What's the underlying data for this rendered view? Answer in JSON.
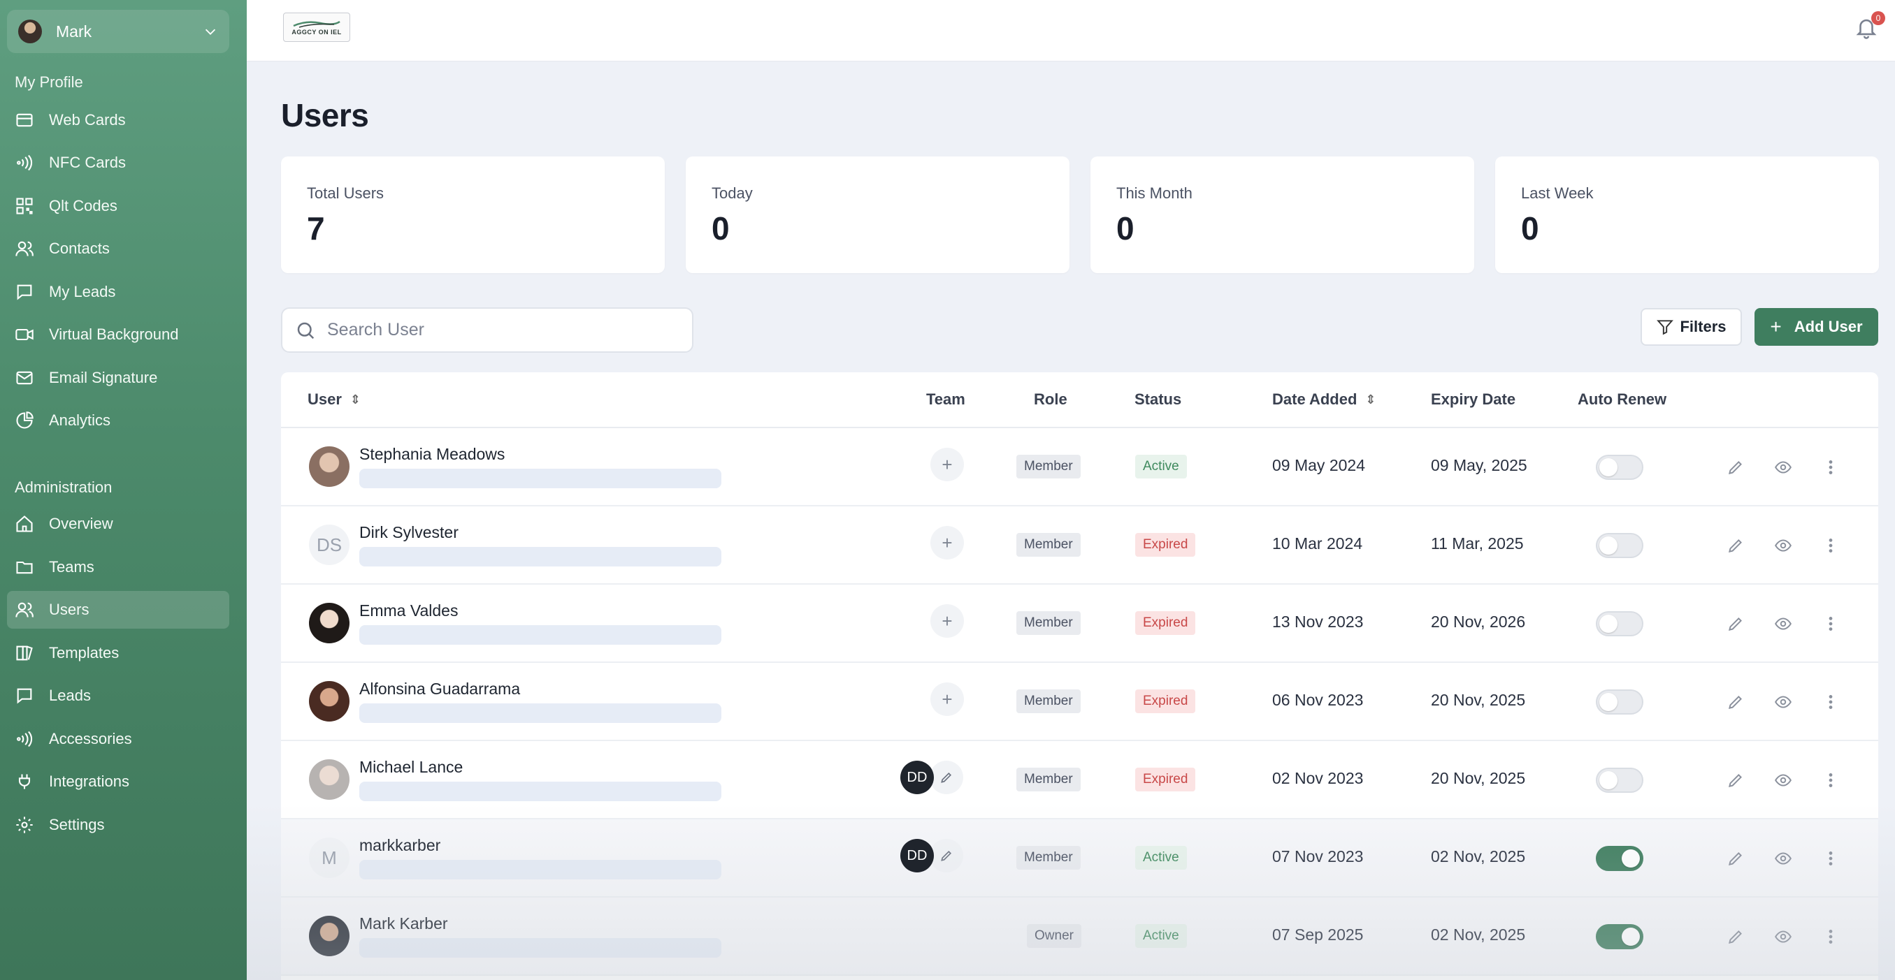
{
  "sidebar": {
    "profile_name": "Mark",
    "my_profile_label": "My Profile",
    "my_profile_items": [
      {
        "label": "Web Cards",
        "icon": "card-icon"
      },
      {
        "label": "NFC Cards",
        "icon": "nfc-icon"
      },
      {
        "label": "Qlt Codes",
        "icon": "qr-code-icon"
      },
      {
        "label": "Contacts",
        "icon": "contacts-icon"
      },
      {
        "label": "My Leads",
        "icon": "chat-icon"
      },
      {
        "label": "Virtual Background",
        "icon": "video-icon"
      },
      {
        "label": "Email Signature",
        "icon": "mail-icon"
      },
      {
        "label": "Analytics",
        "icon": "pie-chart-icon"
      }
    ],
    "admin_label": "Administration",
    "admin_items": [
      {
        "label": "Overview",
        "icon": "home-icon"
      },
      {
        "label": "Teams",
        "icon": "folder-icon"
      },
      {
        "label": "Users",
        "icon": "users-icon",
        "active": true
      },
      {
        "label": "Templates",
        "icon": "templates-icon"
      },
      {
        "label": "Leads",
        "icon": "chat-icon"
      },
      {
        "label": "Accessories",
        "icon": "nfc-icon"
      },
      {
        "label": "Integrations",
        "icon": "plug-icon"
      },
      {
        "label": "Settings",
        "icon": "gear-icon"
      }
    ]
  },
  "header": {
    "logo_text": "AGGCY ON IEL",
    "notification_count": "0"
  },
  "main": {
    "title": "Users",
    "stats": [
      {
        "label": "Total Users",
        "value": "7"
      },
      {
        "label": "Today",
        "value": "0"
      },
      {
        "label": "This Month",
        "value": "0"
      },
      {
        "label": "Last Week",
        "value": "0"
      }
    ],
    "search_placeholder": "Search User",
    "filters_label": "Filters",
    "add_user_label": "Add User"
  },
  "table": {
    "columns": {
      "user": "User",
      "team": "Team",
      "role": "Role",
      "status": "Status",
      "date_added": "Date Added",
      "expiry_date": "Expiry Date",
      "auto_renew": "Auto Renew"
    },
    "rows": [
      {
        "name": "Stephania Meadows",
        "initials": "",
        "team": "",
        "role": "Member",
        "status": "Active",
        "date_added": "09 May 2024",
        "expiry": "09 May, 2025",
        "auto_renew": false
      },
      {
        "name": "Dirk Sylvester",
        "initials": "DS",
        "team": "",
        "role": "Member",
        "status": "Expired",
        "date_added": "10 Mar 2024",
        "expiry": "11 Mar, 2025",
        "auto_renew": false
      },
      {
        "name": "Emma Valdes",
        "initials": "",
        "team": "",
        "role": "Member",
        "status": "Expired",
        "date_added": "13 Nov 2023",
        "expiry": "20 Nov, 2026",
        "auto_renew": false
      },
      {
        "name": "Alfonsina Guadarrama",
        "initials": "",
        "team": "",
        "role": "Member",
        "status": "Expired",
        "date_added": "06 Nov 2023",
        "expiry": "20 Nov, 2025",
        "auto_renew": false
      },
      {
        "name": "Michael Lance",
        "initials": "",
        "team": "DD",
        "role": "Member",
        "status": "Expired",
        "date_added": "02 Nov 2023",
        "expiry": "20 Nov, 2025",
        "auto_renew": false
      },
      {
        "name": "markkarber",
        "initials": "M",
        "team": "DD",
        "role": "Member",
        "status": "Active",
        "date_added": "07 Nov 2023",
        "expiry": "02 Nov, 2025",
        "auto_renew": true
      },
      {
        "name": "Mark Karber",
        "initials": "",
        "team": "",
        "role": "Owner",
        "status": "Active",
        "date_added": "07 Sep 2025",
        "expiry": "02 Nov, 2025",
        "auto_renew": true
      }
    ]
  }
}
